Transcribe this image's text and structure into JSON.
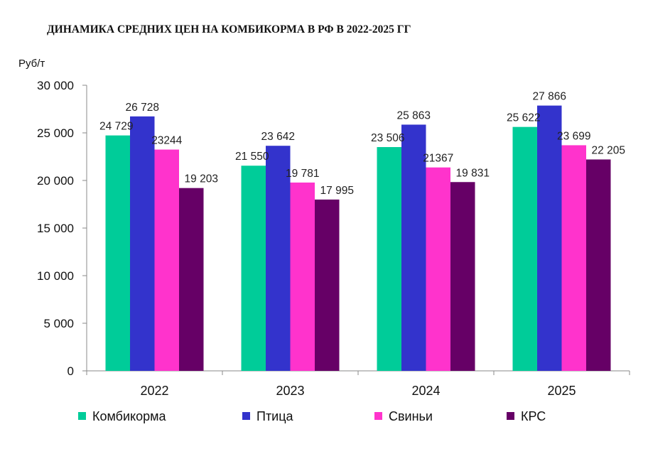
{
  "chart_data": {
    "type": "bar",
    "title": "ДИНАМИКА СРЕДНИХ ЦЕН НА КОМБИКОРМА В РФ В 2022-2025 ГГ",
    "ylabel": "Руб/т",
    "xlabel": "",
    "categories": [
      "2022",
      "2023",
      "2024",
      "2025"
    ],
    "ylim": [
      0,
      30000
    ],
    "yticks": [
      0,
      5000,
      10000,
      15000,
      20000,
      25000,
      30000
    ],
    "ytick_labels": [
      "0",
      "5 000",
      "10 000",
      "15 000",
      "20 000",
      "25 000",
      "30 000"
    ],
    "grid": false,
    "legend_position": "bottom",
    "series": [
      {
        "name": "Комбикорма",
        "color": "#00cc99",
        "values": [
          24729,
          21550,
          23506,
          25622
        ],
        "labels": [
          "24 729",
          "21 550",
          "23 506",
          "25 622"
        ]
      },
      {
        "name": "Птица",
        "color": "#3333cc",
        "values": [
          26728,
          23642,
          25863,
          27866
        ],
        "labels": [
          "26 728",
          "23 642",
          "25 863",
          "27 866"
        ]
      },
      {
        "name": "Свиньи",
        "color": "#ff33cc",
        "values": [
          23244,
          19781,
          21367,
          23699
        ],
        "labels": [
          "23244",
          "19 781",
          "21367",
          "23 699"
        ]
      },
      {
        "name": "КРС",
        "color": "#660066",
        "values": [
          19203,
          17995,
          19831,
          22205
        ],
        "labels": [
          "19 203",
          "17 995",
          "19 831",
          "22 205"
        ]
      }
    ]
  }
}
